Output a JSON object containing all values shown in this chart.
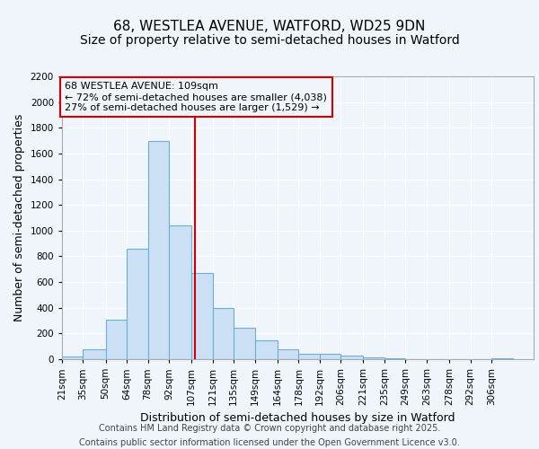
{
  "title_line1": "68, WESTLEA AVENUE, WATFORD, WD25 9DN",
  "title_line2": "Size of property relative to semi-detached houses in Watford",
  "xlabel": "Distribution of semi-detached houses by size in Watford",
  "ylabel": "Number of semi-detached properties",
  "bin_labels": [
    "21sqm",
    "35sqm",
    "50sqm",
    "64sqm",
    "78sqm",
    "92sqm",
    "107sqm",
    "121sqm",
    "135sqm",
    "149sqm",
    "164sqm",
    "178sqm",
    "192sqm",
    "206sqm",
    "221sqm",
    "235sqm",
    "249sqm",
    "263sqm",
    "278sqm",
    "292sqm",
    "306sqm"
  ],
  "bin_edges": [
    21,
    35,
    50,
    64,
    78,
    92,
    107,
    121,
    135,
    149,
    164,
    178,
    192,
    206,
    221,
    235,
    249,
    263,
    278,
    292,
    306,
    320
  ],
  "bar_heights": [
    20,
    75,
    310,
    860,
    1700,
    1040,
    670,
    395,
    245,
    145,
    80,
    40,
    40,
    30,
    15,
    5,
    2,
    1,
    1,
    1,
    10
  ],
  "bar_color": "#cce0f5",
  "bar_edgecolor": "#6aaed6",
  "property_value": 109,
  "redline_color": "#cc0000",
  "annotation_text": "68 WESTLEA AVENUE: 109sqm\n← 72% of semi-detached houses are smaller (4,038)\n27% of semi-detached houses are larger (1,529) →",
  "annotation_box_color": "#cc0000",
  "ylim": [
    0,
    2200
  ],
  "yticks": [
    0,
    200,
    400,
    600,
    800,
    1000,
    1200,
    1400,
    1600,
    1800,
    2000,
    2200
  ],
  "footer_line1": "Contains HM Land Registry data © Crown copyright and database right 2025.",
  "footer_line2": "Contains public sector information licensed under the Open Government Licence v3.0.",
  "bg_color": "#f0f4fb",
  "plot_bg_color": "#f0f4fb",
  "grid_color": "#ffffff",
  "title_fontsize": 11,
  "subtitle_fontsize": 10,
  "axis_label_fontsize": 9,
  "tick_fontsize": 7.5,
  "footer_fontsize": 7,
  "annotation_fontsize": 8
}
